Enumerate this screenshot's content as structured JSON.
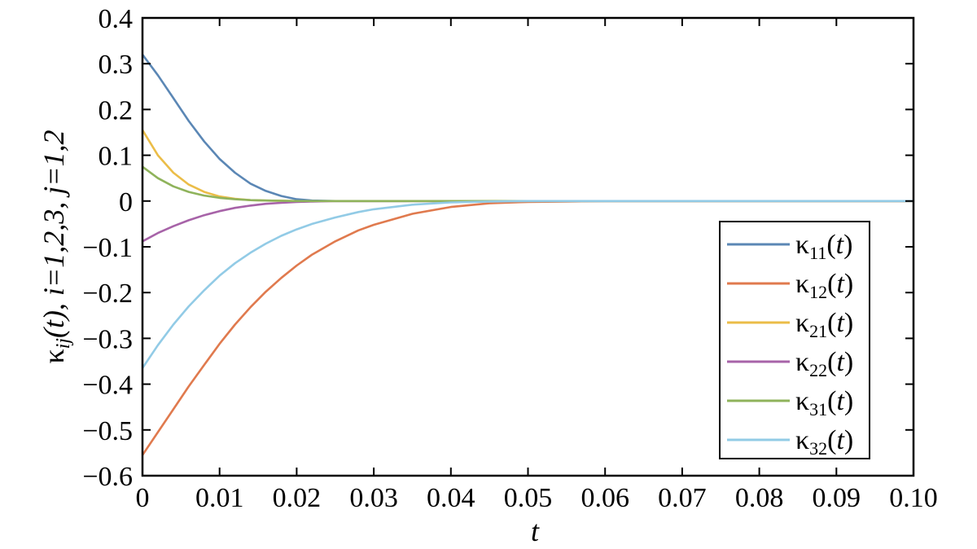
{
  "chart_data": {
    "type": "line",
    "xlabel": "t",
    "ylabel": "κ_ij(t), i=1,2,3, j=1,2",
    "xlim": [
      0,
      0.1
    ],
    "ylim": [
      -0.6,
      0.4
    ],
    "x_ticks": [
      "0",
      "0.01",
      "0.02",
      "0.03",
      "0.04",
      "0.05",
      "0.06",
      "0.07",
      "0.08",
      "0.09",
      "0.10"
    ],
    "y_ticks": [
      "0.4",
      "0.3",
      "0.2",
      "0.1",
      "0",
      "−0.1",
      "−0.2",
      "−0.3",
      "−0.4",
      "−0.5",
      "−0.6"
    ],
    "grid": false,
    "legend_position": "lower-right",
    "series": [
      {
        "name": "κ11(t)",
        "base": "κ",
        "sub": "11",
        "color": "#5b87b5",
        "x": [
          0,
          0.002,
          0.004,
          0.006,
          0.008,
          0.01,
          0.012,
          0.014,
          0.016,
          0.018,
          0.02,
          0.022,
          0.025,
          0.03,
          0.04,
          0.05,
          0.06,
          0.07,
          0.08,
          0.09,
          0.1
        ],
        "y": [
          0.32,
          0.275,
          0.225,
          0.175,
          0.13,
          0.092,
          0.062,
          0.038,
          0.022,
          0.011,
          0.004,
          0.001,
          0,
          0,
          0,
          0,
          0,
          0,
          0,
          0,
          0
        ]
      },
      {
        "name": "κ12(t)",
        "base": "κ",
        "sub": "12",
        "color": "#e07a4e",
        "x": [
          0,
          0.002,
          0.004,
          0.006,
          0.008,
          0.01,
          0.012,
          0.014,
          0.016,
          0.018,
          0.02,
          0.022,
          0.025,
          0.028,
          0.03,
          0.035,
          0.04,
          0.045,
          0.05,
          0.055,
          0.06,
          0.07,
          0.08,
          0.09,
          0.1
        ],
        "y": [
          -0.555,
          -0.505,
          -0.455,
          -0.405,
          -0.358,
          -0.312,
          -0.27,
          -0.232,
          -0.198,
          -0.168,
          -0.141,
          -0.117,
          -0.088,
          -0.064,
          -0.052,
          -0.028,
          -0.013,
          -0.005,
          -0.002,
          -0.001,
          0,
          0,
          0,
          0,
          0
        ]
      },
      {
        "name": "κ21(t)",
        "base": "κ",
        "sub": "21",
        "color": "#ebbd48",
        "x": [
          0,
          0.002,
          0.004,
          0.006,
          0.008,
          0.01,
          0.012,
          0.014,
          0.016,
          0.02,
          0.025,
          0.03,
          0.04,
          0.05,
          0.06,
          0.07,
          0.08,
          0.09,
          0.1
        ],
        "y": [
          0.155,
          0.1,
          0.062,
          0.036,
          0.02,
          0.01,
          0.005,
          0.002,
          0.001,
          0,
          0,
          0,
          0,
          0,
          0,
          0,
          0,
          0,
          0
        ]
      },
      {
        "name": "κ22(t)",
        "base": "κ",
        "sub": "22",
        "color": "#a763a8",
        "x": [
          0,
          0.002,
          0.004,
          0.006,
          0.008,
          0.01,
          0.012,
          0.014,
          0.016,
          0.018,
          0.02,
          0.022,
          0.025,
          0.03,
          0.04,
          0.05,
          0.06,
          0.07,
          0.08,
          0.09,
          0.1
        ],
        "y": [
          -0.088,
          -0.07,
          -0.055,
          -0.042,
          -0.031,
          -0.022,
          -0.015,
          -0.01,
          -0.006,
          -0.004,
          -0.002,
          -0.001,
          0,
          0,
          0,
          0,
          0,
          0,
          0,
          0,
          0
        ]
      },
      {
        "name": "κ31(t)",
        "base": "κ",
        "sub": "31",
        "color": "#8fb35b",
        "x": [
          0,
          0.002,
          0.004,
          0.006,
          0.008,
          0.01,
          0.012,
          0.014,
          0.016,
          0.02,
          0.025,
          0.03,
          0.04,
          0.05,
          0.06,
          0.07,
          0.08,
          0.09,
          0.1
        ],
        "y": [
          0.075,
          0.05,
          0.032,
          0.02,
          0.012,
          0.007,
          0.004,
          0.002,
          0.001,
          0,
          0,
          0,
          0,
          0,
          0,
          0,
          0,
          0,
          0
        ]
      },
      {
        "name": "κ32(t)",
        "base": "κ",
        "sub": "32",
        "color": "#92cbe6",
        "x": [
          0,
          0.002,
          0.004,
          0.006,
          0.008,
          0.01,
          0.012,
          0.014,
          0.016,
          0.018,
          0.02,
          0.022,
          0.025,
          0.028,
          0.03,
          0.035,
          0.04,
          0.045,
          0.05,
          0.06,
          0.07,
          0.08,
          0.09,
          0.1
        ],
        "y": [
          -0.365,
          -0.315,
          -0.27,
          -0.23,
          -0.195,
          -0.163,
          -0.136,
          -0.113,
          -0.093,
          -0.076,
          -0.062,
          -0.05,
          -0.036,
          -0.024,
          -0.018,
          -0.008,
          -0.003,
          -0.001,
          0,
          0,
          0,
          0,
          0,
          0
        ]
      }
    ]
  }
}
